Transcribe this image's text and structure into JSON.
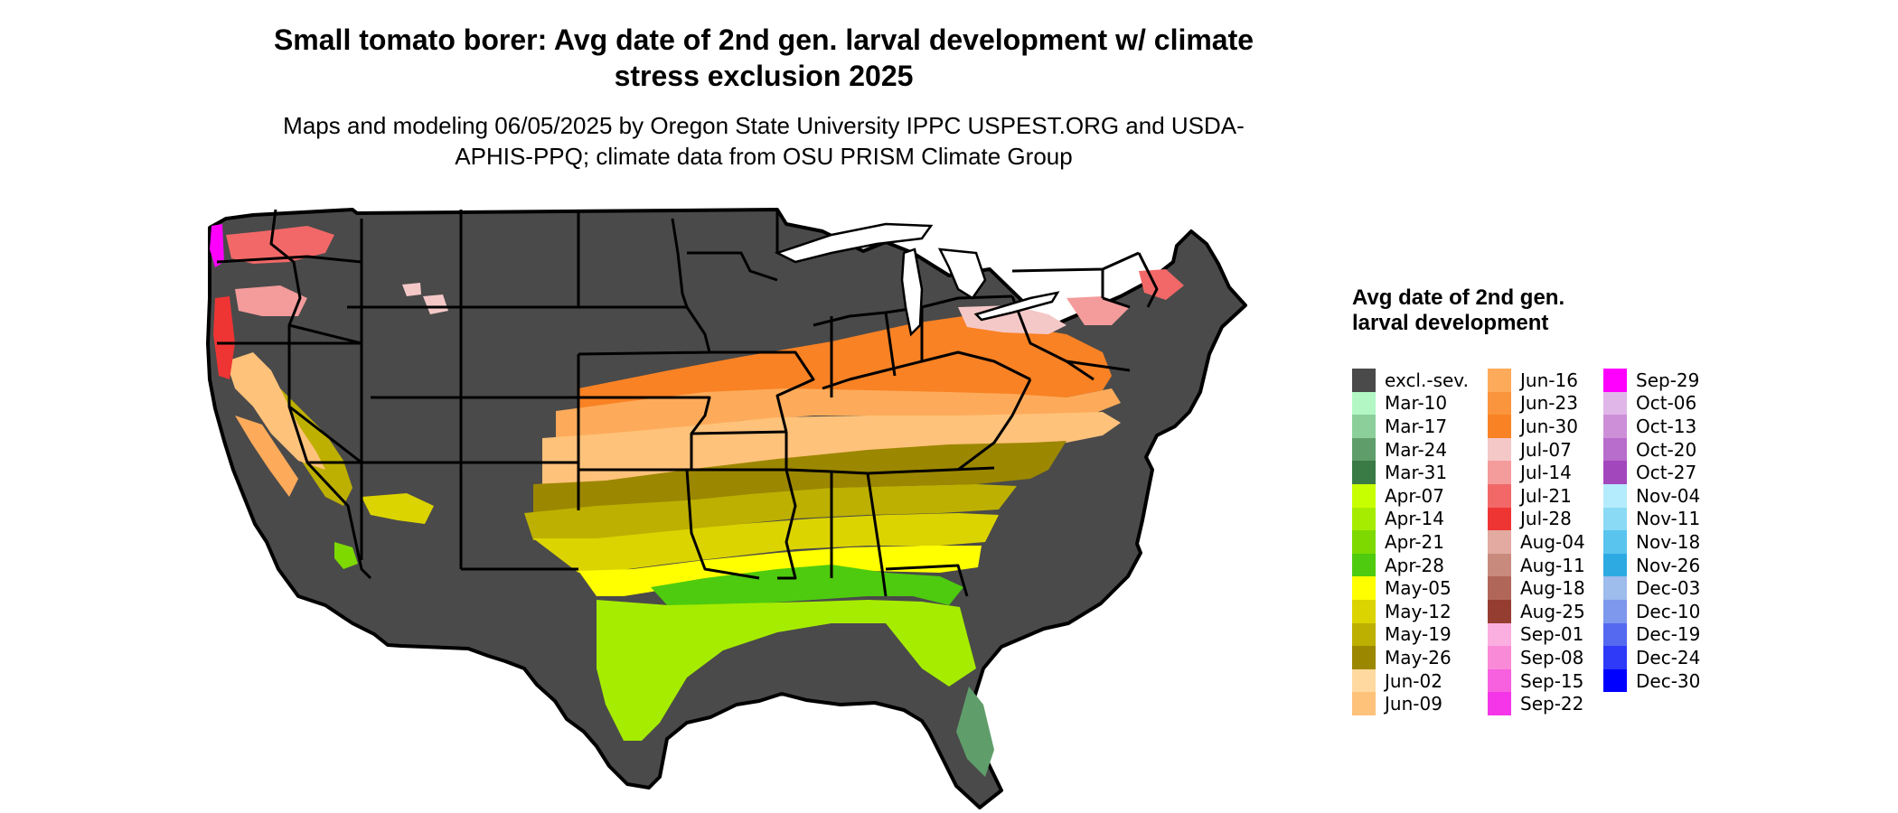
{
  "title": "Small tomato borer: Avg date of 2nd gen. larval development w/ climate stress exclusion 2025",
  "subtitle": "Maps and modeling 06/05/2025 by Oregon State University IPPC USPEST.ORG and USDA-APHIS-PPQ; climate data from OSU PRISM Climate Group",
  "legend": {
    "title": "Avg date of 2nd gen. larval development",
    "columns": [
      [
        {
          "label": "excl.-sev.",
          "color": "#4a4a4a"
        },
        {
          "label": "Mar-10",
          "color": "#b3f7c4"
        },
        {
          "label": "Mar-17",
          "color": "#8ccf9b"
        },
        {
          "label": "Mar-24",
          "color": "#5f9e6a"
        },
        {
          "label": "Mar-31",
          "color": "#3a7a45"
        },
        {
          "label": "Apr-07",
          "color": "#c8ff00"
        },
        {
          "label": "Apr-14",
          "color": "#a6ec00"
        },
        {
          "label": "Apr-21",
          "color": "#7dd900"
        },
        {
          "label": "Apr-28",
          "color": "#4ecb0e"
        },
        {
          "label": "May-05",
          "color": "#ffff00"
        },
        {
          "label": "May-12",
          "color": "#dcd400"
        },
        {
          "label": "May-19",
          "color": "#bdb000"
        },
        {
          "label": "May-26",
          "color": "#9c8700"
        },
        {
          "label": "Jun-02",
          "color": "#ffd9a0"
        },
        {
          "label": "Jun-09",
          "color": "#ffc27a"
        }
      ],
      [
        {
          "label": "Jun-16",
          "color": "#fdab5a"
        },
        {
          "label": "Jun-23",
          "color": "#fb953d"
        },
        {
          "label": "Jun-30",
          "color": "#f98224"
        },
        {
          "label": "Jul-07",
          "color": "#f5c8c8"
        },
        {
          "label": "Jul-14",
          "color": "#f49b9b"
        },
        {
          "label": "Jul-21",
          "color": "#f26868"
        },
        {
          "label": "Jul-28",
          "color": "#ef3434"
        },
        {
          "label": "Aug-04",
          "color": "#e2aaa0"
        },
        {
          "label": "Aug-11",
          "color": "#c98a7e"
        },
        {
          "label": "Aug-18",
          "color": "#b06658"
        },
        {
          "label": "Aug-25",
          "color": "#953d30"
        },
        {
          "label": "Sep-01",
          "color": "#fbaee0"
        },
        {
          "label": "Sep-08",
          "color": "#f98ad7"
        },
        {
          "label": "Sep-15",
          "color": "#f760df"
        },
        {
          "label": "Sep-22",
          "color": "#f535e8"
        }
      ],
      [
        {
          "label": "Sep-29",
          "color": "#ff00ff"
        },
        {
          "label": "Oct-06",
          "color": "#e0b6e8"
        },
        {
          "label": "Oct-13",
          "color": "#cd90d8"
        },
        {
          "label": "Oct-20",
          "color": "#b86ccb"
        },
        {
          "label": "Oct-27",
          "color": "#a347bd"
        },
        {
          "label": "Nov-04",
          "color": "#b5ecfd"
        },
        {
          "label": "Nov-11",
          "color": "#8adaf5"
        },
        {
          "label": "Nov-18",
          "color": "#59c4ee"
        },
        {
          "label": "Nov-26",
          "color": "#2eaae2"
        },
        {
          "label": "Dec-03",
          "color": "#9ebcec"
        },
        {
          "label": "Dec-10",
          "color": "#7d98ec"
        },
        {
          "label": "Dec-19",
          "color": "#5469f0"
        },
        {
          "label": "Dec-24",
          "color": "#2e3af7"
        },
        {
          "label": "Dec-30",
          "color": "#0000ff"
        }
      ]
    ]
  }
}
